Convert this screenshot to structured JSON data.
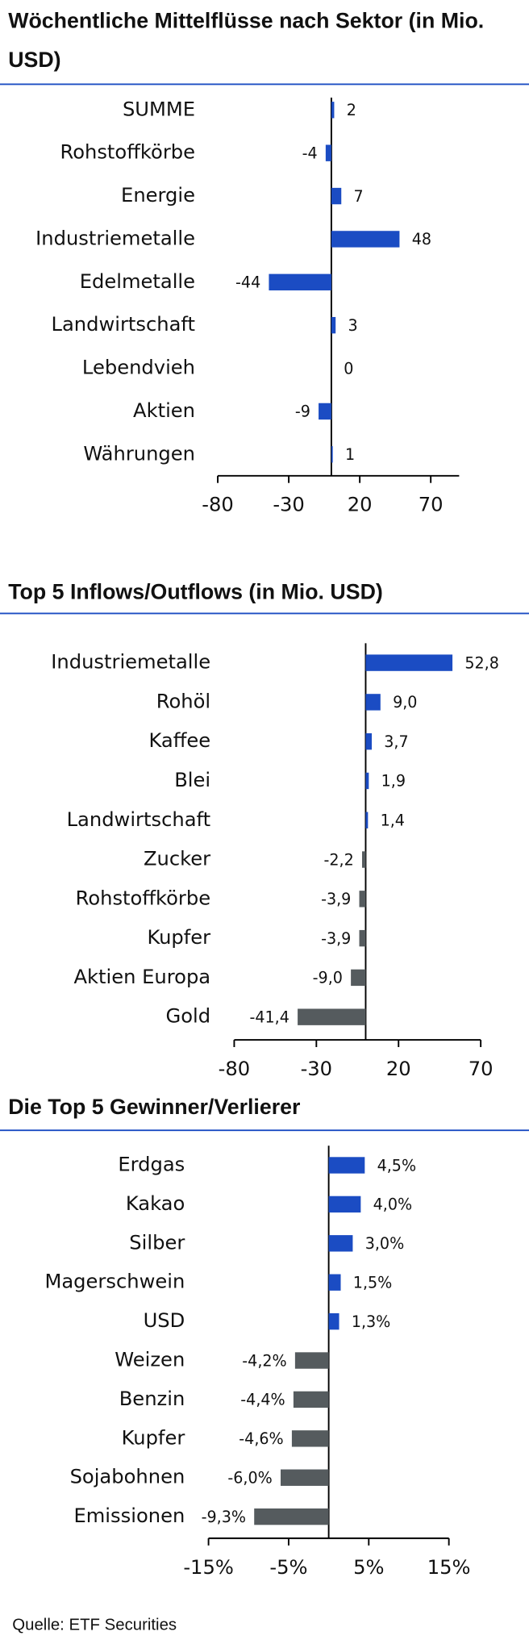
{
  "chart_data": [
    {
      "type": "barh",
      "title": "Wöchentliche Mittelflüsse nach Sektor (in Mio. USD)",
      "categories": [
        "SUMME",
        "Rohstoffkörbe",
        "Energie",
        "Industriemetalle",
        "Edelmetalle",
        "Landwirtschaft",
        "Lebendvieh",
        "Aktien",
        "Währungen"
      ],
      "values": [
        2,
        -4,
        7,
        48,
        -44,
        3,
        0,
        -9,
        1
      ],
      "color": "#1b4cc3",
      "xlim": [
        -80,
        90
      ],
      "xticks": [
        -80,
        -30,
        20,
        70
      ]
    },
    {
      "type": "barh",
      "title": "Top 5 Inflows/Outflows (in Mio. USD)",
      "categories": [
        "Industriemetalle",
        "Rohöl",
        "Kaffee",
        "Blei",
        "Landwirtschaft",
        "Zucker",
        "Rohstoffkörbe",
        "Kupfer",
        "Aktien Europa",
        "Gold"
      ],
      "values": [
        52.8,
        9.0,
        3.7,
        1.9,
        1.4,
        -2.2,
        -3.9,
        -3.9,
        -9.0,
        -41.4
      ],
      "value_labels": [
        "52,8",
        "9,0",
        "3,7",
        "1,9",
        "1,4",
        "-2,2",
        "-3,9",
        "-3,9",
        "-9,0",
        "-41,4"
      ],
      "colors": [
        "#1b4cc3",
        "#1b4cc3",
        "#1b4cc3",
        "#1b4cc3",
        "#1b4cc3",
        "#555b5e",
        "#555b5e",
        "#555b5e",
        "#555b5e",
        "#555b5e"
      ],
      "xlim": [
        -80,
        70
      ],
      "xticks": [
        -80,
        -30,
        20,
        70
      ]
    },
    {
      "type": "barh",
      "title": "Die Top 5 Gewinner/Verlierer",
      "categories": [
        "Erdgas",
        "Kakao",
        "Silber",
        "Magerschwein",
        "USD",
        "Weizen",
        "Benzin",
        "Kupfer",
        "Sojabohnen",
        "Emissionen"
      ],
      "values": [
        4.5,
        4.0,
        3.0,
        1.5,
        1.3,
        -4.2,
        -4.4,
        -4.6,
        -6.0,
        -9.3
      ],
      "value_labels": [
        "4,5%",
        "4,0%",
        "3,0%",
        "1,5%",
        "1,3%",
        "-4,2%",
        "-4,4%",
        "-4,6%",
        "-6,0%",
        "-9,3%"
      ],
      "colors": [
        "#1b4cc3",
        "#1b4cc3",
        "#1b4cc3",
        "#1b4cc3",
        "#1b4cc3",
        "#555b5e",
        "#555b5e",
        "#555b5e",
        "#555b5e",
        "#555b5e"
      ],
      "xlim": [
        -15,
        15
      ],
      "xticks": [
        {
          "value": -15,
          "label": "-15%"
        },
        {
          "value": -5,
          "label": "-5%"
        },
        {
          "value": 5,
          "label": "5%"
        },
        {
          "value": 15,
          "label": "15%"
        }
      ]
    }
  ],
  "source": "Quelle: ETF Securities"
}
